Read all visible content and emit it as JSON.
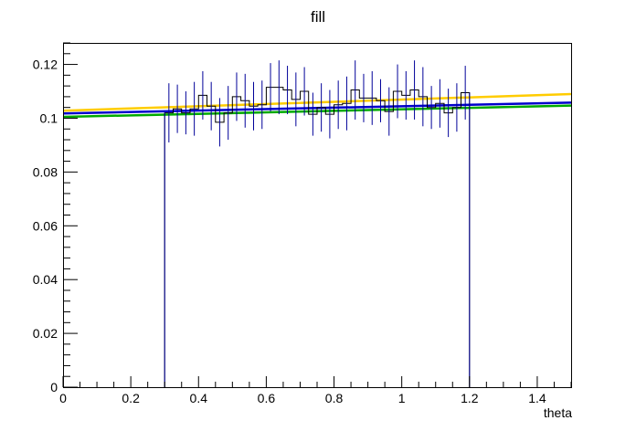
{
  "chart_data": {
    "type": "line",
    "title": "fill",
    "xlabel": "theta",
    "ylabel": "",
    "xlim": [
      0,
      1.5
    ],
    "ylim": [
      0,
      0.128
    ],
    "x_ticks": [
      0,
      0.2,
      0.4,
      0.6,
      0.8,
      1,
      1.2,
      1.4
    ],
    "x_tick_labels": [
      "0",
      "0.2",
      "0.4",
      "0.6",
      "0.8",
      "1",
      "1.2",
      "1.4"
    ],
    "y_ticks": [
      0,
      0.02,
      0.04,
      0.06,
      0.08,
      0.1,
      0.12
    ],
    "y_tick_labels": [
      "0",
      "0.02",
      "0.04",
      "0.06",
      "0.08",
      "0.1",
      "0.12"
    ],
    "grid": false,
    "legend": "none",
    "histogram": {
      "color": "#000099",
      "line_color": "#000000",
      "bin_width": 0.025,
      "range": [
        0.3,
        1.2
      ],
      "bins": [
        {
          "x": 0.3125,
          "y": 0.102,
          "err": 0.011
        },
        {
          "x": 0.3375,
          "y": 0.1035,
          "err": 0.009
        },
        {
          "x": 0.3625,
          "y": 0.102,
          "err": 0.008
        },
        {
          "x": 0.3875,
          "y": 0.1035,
          "err": 0.01
        },
        {
          "x": 0.4125,
          "y": 0.1085,
          "err": 0.009
        },
        {
          "x": 0.4375,
          "y": 0.1045,
          "err": 0.009
        },
        {
          "x": 0.4625,
          "y": 0.0985,
          "err": 0.009
        },
        {
          "x": 0.4875,
          "y": 0.102,
          "err": 0.01
        },
        {
          "x": 0.5125,
          "y": 0.108,
          "err": 0.009
        },
        {
          "x": 0.5375,
          "y": 0.1065,
          "err": 0.01
        },
        {
          "x": 0.5625,
          "y": 0.1045,
          "err": 0.009
        },
        {
          "x": 0.5875,
          "y": 0.105,
          "err": 0.009
        },
        {
          "x": 0.6125,
          "y": 0.1115,
          "err": 0.009
        },
        {
          "x": 0.6375,
          "y": 0.1115,
          "err": 0.01
        },
        {
          "x": 0.6625,
          "y": 0.1105,
          "err": 0.009
        },
        {
          "x": 0.6875,
          "y": 0.107,
          "err": 0.01
        },
        {
          "x": 0.7125,
          "y": 0.11,
          "err": 0.009
        },
        {
          "x": 0.7375,
          "y": 0.1015,
          "err": 0.008
        },
        {
          "x": 0.7625,
          "y": 0.104,
          "err": 0.009
        },
        {
          "x": 0.7875,
          "y": 0.1015,
          "err": 0.009
        },
        {
          "x": 0.8125,
          "y": 0.105,
          "err": 0.009
        },
        {
          "x": 0.8375,
          "y": 0.1055,
          "err": 0.01
        },
        {
          "x": 0.8625,
          "y": 0.1105,
          "err": 0.011
        },
        {
          "x": 0.8875,
          "y": 0.1075,
          "err": 0.009
        },
        {
          "x": 0.9125,
          "y": 0.1075,
          "err": 0.01
        },
        {
          "x": 0.9375,
          "y": 0.1065,
          "err": 0.008
        },
        {
          "x": 0.9625,
          "y": 0.1025,
          "err": 0.009
        },
        {
          "x": 0.9875,
          "y": 0.11,
          "err": 0.01
        },
        {
          "x": 1.0125,
          "y": 0.1085,
          "err": 0.009
        },
        {
          "x": 1.0375,
          "y": 0.1105,
          "err": 0.011
        },
        {
          "x": 1.0625,
          "y": 0.108,
          "err": 0.011
        },
        {
          "x": 1.0875,
          "y": 0.104,
          "err": 0.008
        },
        {
          "x": 1.1125,
          "y": 0.1055,
          "err": 0.009
        },
        {
          "x": 1.1375,
          "y": 0.102,
          "err": 0.009
        },
        {
          "x": 1.1625,
          "y": 0.104,
          "err": 0.009
        },
        {
          "x": 1.1875,
          "y": 0.1095,
          "err": 0.01
        }
      ],
      "edges_at_zero": [
        0.3,
        1.2
      ]
    },
    "series": [
      {
        "color": "#ffcc00",
        "x": [
          0,
          1.5
        ],
        "y": [
          0.1028,
          0.109
        ]
      },
      {
        "color": "#0000cc",
        "x": [
          0,
          1.5
        ],
        "y": [
          0.1018,
          0.1058
        ]
      },
      {
        "color": "#00aa00",
        "x": [
          0,
          1.5
        ],
        "y": [
          0.1005,
          0.1047
        ]
      }
    ]
  }
}
